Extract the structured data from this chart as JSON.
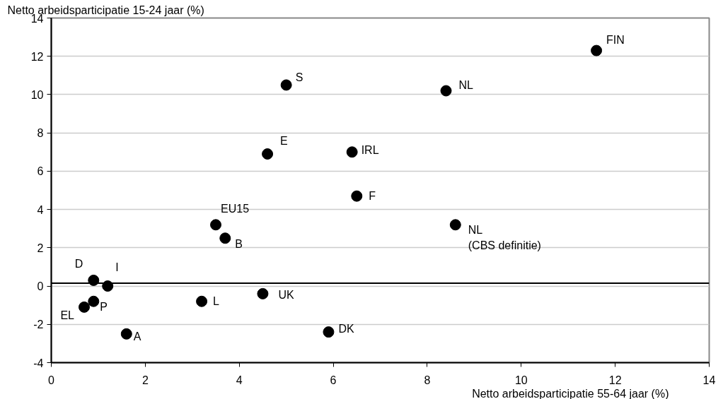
{
  "chart_data": {
    "type": "scatter",
    "ylabel": "Netto arbeidsparticipatie 15-24 jaar (%)",
    "xlabel": "Netto arbeidsparticipatie 55-64 jaar (%)",
    "x": [
      5.0,
      4.6,
      6.4,
      6.5,
      11.6,
      8.4,
      8.6,
      3.5,
      3.7,
      0.9,
      1.2,
      0.9,
      0.7,
      1.6,
      3.2,
      4.5,
      5.9
    ],
    "series": [
      {
        "color": "#000000",
        "values": [
          10.5,
          6.9,
          7.0,
          4.7,
          12.3,
          10.2,
          3.2,
          3.2,
          2.5,
          0.3,
          0.0,
          -0.8,
          -1.1,
          -2.5,
          -0.8,
          -0.4,
          -2.4
        ]
      }
    ],
    "annotations": [
      {
        "text": "S",
        "x": 5.0,
        "y": 10.5
      },
      {
        "text": "E",
        "x": 4.6,
        "y": 6.9
      },
      {
        "text": "IRL",
        "x": 6.4,
        "y": 7.0
      },
      {
        "text": "F",
        "x": 6.5,
        "y": 4.7
      },
      {
        "text": "FIN",
        "x": 11.6,
        "y": 12.3
      },
      {
        "text": "NL",
        "x": 8.4,
        "y": 10.2
      },
      {
        "text": "NL\n(CBS definitie)",
        "x": 8.6,
        "y": 3.2
      },
      {
        "text": "EU15",
        "x": 3.5,
        "y": 3.2
      },
      {
        "text": "B",
        "x": 3.7,
        "y": 2.5
      },
      {
        "text": "D",
        "x": 0.9,
        "y": 0.3
      },
      {
        "text": "I",
        "x": 1.2,
        "y": 0.0
      },
      {
        "text": "P",
        "x": 0.9,
        "y": -0.8
      },
      {
        "text": "EL",
        "x": 0.7,
        "y": -1.1
      },
      {
        "text": "A",
        "x": 1.6,
        "y": -2.5
      },
      {
        "text": "L",
        "x": 3.2,
        "y": -0.8
      },
      {
        "text": "UK",
        "x": 4.5,
        "y": -0.4
      },
      {
        "text": "DK",
        "x": 5.9,
        "y": -2.4
      }
    ],
    "ref_lines": [
      {
        "axis": "y",
        "value": 0.15,
        "color": "#000000"
      }
    ],
    "xlim": [
      0,
      14
    ],
    "xticks": [
      0,
      2,
      4,
      6,
      8,
      10,
      12,
      14
    ],
    "ylim": [
      -4,
      14
    ],
    "yticks": [
      -4,
      -2,
      0,
      2,
      4,
      6,
      8,
      10,
      12,
      14
    ],
    "grid": "y",
    "marker": "circle"
  }
}
